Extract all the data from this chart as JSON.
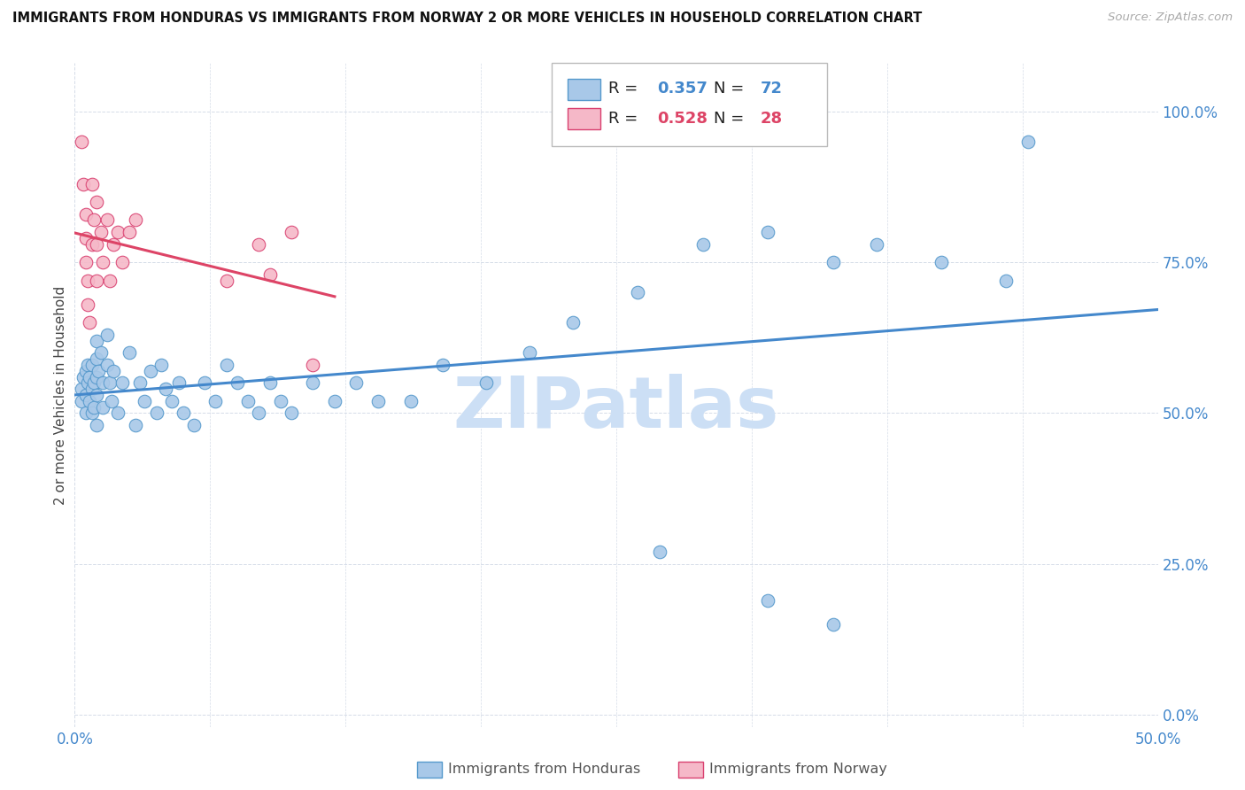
{
  "title": "IMMIGRANTS FROM HONDURAS VS IMMIGRANTS FROM NORWAY 2 OR MORE VEHICLES IN HOUSEHOLD CORRELATION CHART",
  "source": "Source: ZipAtlas.com",
  "ylabel": "2 or more Vehicles in Household",
  "yticks_labels": [
    "0.0%",
    "25.0%",
    "50.0%",
    "75.0%",
    "100.0%"
  ],
  "ytick_vals": [
    0.0,
    0.25,
    0.5,
    0.75,
    1.0
  ],
  "xtick_left": "0.0%",
  "xtick_right": "50.0%",
  "xlim": [
    0.0,
    0.5
  ],
  "ylim": [
    -0.02,
    1.08
  ],
  "honduras_fill": "#a8c8e8",
  "honduras_edge": "#5599cc",
  "norway_fill": "#f5b8c8",
  "norway_edge": "#d94070",
  "honduras_line_color": "#4488cc",
  "norway_line_color": "#dd4466",
  "legend_R_honduras": "R = 0.357",
  "legend_N_honduras": "N = 72",
  "legend_R_norway": "R = 0.528",
  "legend_N_norway": "N = 28",
  "watermark": "ZIPatlas",
  "watermark_color": "#ccdff5",
  "honduras_x": [
    0.003,
    0.003,
    0.004,
    0.005,
    0.005,
    0.005,
    0.006,
    0.006,
    0.007,
    0.007,
    0.008,
    0.008,
    0.008,
    0.009,
    0.009,
    0.01,
    0.01,
    0.01,
    0.01,
    0.01,
    0.011,
    0.012,
    0.013,
    0.013,
    0.015,
    0.015,
    0.016,
    0.017,
    0.018,
    0.02,
    0.022,
    0.025,
    0.028,
    0.03,
    0.032,
    0.035,
    0.038,
    0.04,
    0.042,
    0.045,
    0.048,
    0.05,
    0.055,
    0.06,
    0.065,
    0.07,
    0.075,
    0.08,
    0.085,
    0.09,
    0.095,
    0.1,
    0.11,
    0.12,
    0.13,
    0.14,
    0.155,
    0.17,
    0.19,
    0.21,
    0.23,
    0.26,
    0.29,
    0.32,
    0.35,
    0.37,
    0.4,
    0.43,
    0.27,
    0.32,
    0.35,
    0.44
  ],
  "honduras_y": [
    0.52,
    0.54,
    0.56,
    0.5,
    0.53,
    0.57,
    0.55,
    0.58,
    0.52,
    0.56,
    0.5,
    0.54,
    0.58,
    0.51,
    0.55,
    0.53,
    0.56,
    0.59,
    0.62,
    0.48,
    0.57,
    0.6,
    0.51,
    0.55,
    0.58,
    0.63,
    0.55,
    0.52,
    0.57,
    0.5,
    0.55,
    0.6,
    0.48,
    0.55,
    0.52,
    0.57,
    0.5,
    0.58,
    0.54,
    0.52,
    0.55,
    0.5,
    0.48,
    0.55,
    0.52,
    0.58,
    0.55,
    0.52,
    0.5,
    0.55,
    0.52,
    0.5,
    0.55,
    0.52,
    0.55,
    0.52,
    0.52,
    0.58,
    0.55,
    0.6,
    0.65,
    0.7,
    0.78,
    0.8,
    0.75,
    0.78,
    0.75,
    0.72,
    0.27,
    0.19,
    0.15,
    0.95
  ],
  "norway_x": [
    0.003,
    0.004,
    0.005,
    0.005,
    0.005,
    0.006,
    0.006,
    0.007,
    0.008,
    0.008,
    0.009,
    0.01,
    0.01,
    0.01,
    0.012,
    0.013,
    0.015,
    0.016,
    0.018,
    0.02,
    0.022,
    0.025,
    0.028,
    0.07,
    0.085,
    0.09,
    0.1,
    0.11
  ],
  "norway_y": [
    0.95,
    0.88,
    0.83,
    0.79,
    0.75,
    0.72,
    0.68,
    0.65,
    0.88,
    0.78,
    0.82,
    0.85,
    0.78,
    0.72,
    0.8,
    0.75,
    0.82,
    0.72,
    0.78,
    0.8,
    0.75,
    0.8,
    0.82,
    0.72,
    0.78,
    0.73,
    0.8,
    0.58
  ],
  "bottom_legend_label_h": "Immigrants from Honduras",
  "bottom_legend_label_n": "Immigrants from Norway"
}
